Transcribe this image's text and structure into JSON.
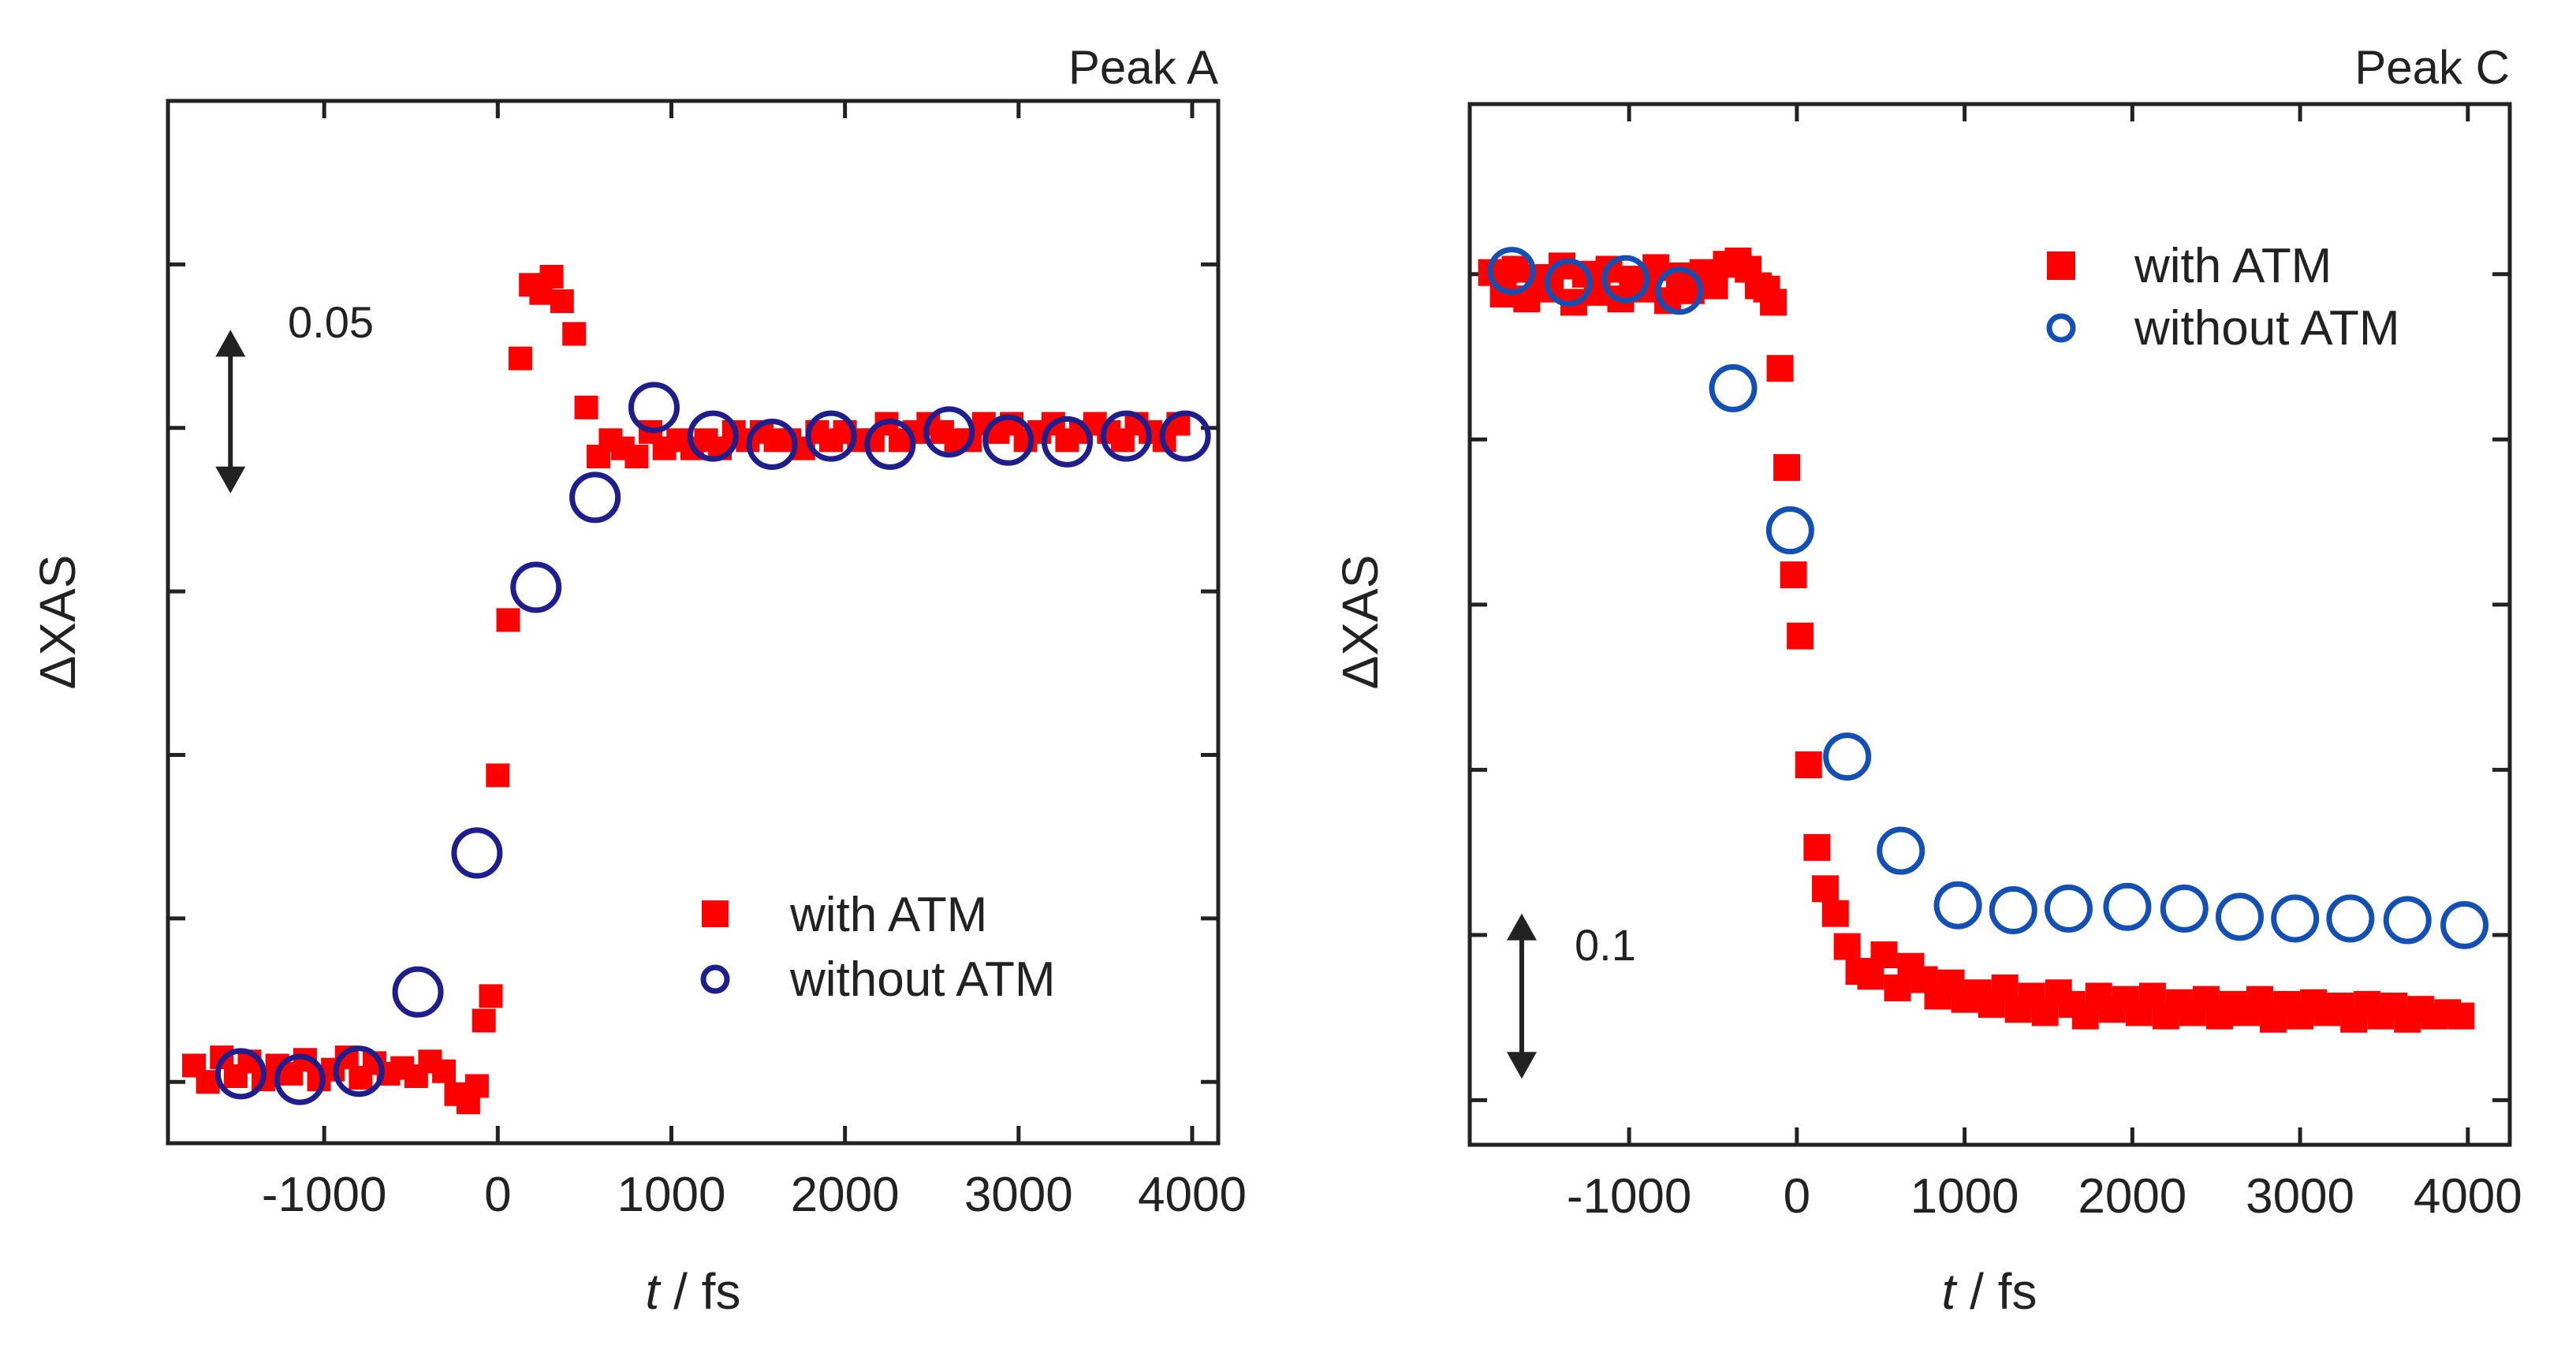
{
  "colors": {
    "with": "#ff0000",
    "without_left": "#1e1e8c",
    "without_right": "#1450b4",
    "axis": "#222222"
  },
  "chart_data": [
    {
      "type": "scatter",
      "title": "Peak A",
      "xlabel_italic": "t",
      "xlabel_rest": " / fs",
      "ylabel": "ΔXAS",
      "xlim": [
        -1900,
        4150
      ],
      "ylim": [
        0,
        0.1275
      ],
      "xticks": [
        -1000,
        0,
        1000,
        2000,
        3000,
        4000
      ],
      "xtick_labels": [
        "-1000",
        "0",
        "1000",
        "2000",
        "3000",
        "4000"
      ],
      "yticks": [
        0.0075,
        0.0275,
        0.0475,
        0.0675,
        0.0875,
        0.1075
      ],
      "scale_bar": {
        "label": "0.05",
        "y0": 0.0795,
        "y1": 0.0995,
        "x": -1540
      },
      "legend": {
        "position": "bottom-right",
        "entries": [
          "with ATM",
          "without ATM"
        ]
      },
      "series": [
        {
          "name": "with ATM",
          "marker": "square",
          "x": [
            -1750,
            -1670,
            -1590,
            -1510,
            -1430,
            -1350,
            -1270,
            -1190,
            -1110,
            -1030,
            -950,
            -870,
            -790,
            -710,
            -630,
            -550,
            -470,
            -390,
            -310,
            -240,
            -170,
            -120,
            -80,
            -40,
            0,
            60,
            130,
            190,
            250,
            310,
            370,
            440,
            510,
            580,
            650,
            720,
            800,
            880,
            960,
            1040,
            1120,
            1200,
            1280,
            1360,
            1440,
            1520,
            1600,
            1680,
            1760,
            1840,
            1920,
            2000,
            2080,
            2160,
            2240,
            2320,
            2400,
            2480,
            2560,
            2640,
            2720,
            2800,
            2880,
            2960,
            3040,
            3120,
            3200,
            3280,
            3360,
            3440,
            3520,
            3600,
            3680,
            3760,
            3840,
            3920
          ],
          "values": [
            0.0095,
            0.0075,
            0.0105,
            0.0082,
            0.01,
            0.0078,
            0.0095,
            0.0085,
            0.0102,
            0.0078,
            0.009,
            0.0105,
            0.008,
            0.0098,
            0.0085,
            0.0092,
            0.0082,
            0.01,
            0.0088,
            0.006,
            0.005,
            0.007,
            0.015,
            0.018,
            0.045,
            0.064,
            0.096,
            0.105,
            0.104,
            0.106,
            0.103,
            0.099,
            0.09,
            0.084,
            0.086,
            0.085,
            0.084,
            0.087,
            0.085,
            0.086,
            0.085,
            0.086,
            0.085,
            0.087,
            0.086,
            0.087,
            0.086,
            0.086,
            0.085,
            0.087,
            0.086,
            0.087,
            0.086,
            0.086,
            0.088,
            0.086,
            0.087,
            0.088,
            0.087,
            0.086,
            0.086,
            0.088,
            0.087,
            0.088,
            0.086,
            0.087,
            0.088,
            0.086,
            0.087,
            0.088,
            0.087,
            0.086,
            0.088,
            0.087,
            0.086,
            0.088
          ]
        },
        {
          "name": "without ATM",
          "marker": "circle",
          "x": [
            -1480,
            -1140,
            -800,
            -460,
            -120,
            220,
            560,
            900,
            1240,
            1580,
            1920,
            2260,
            2600,
            2940,
            3280,
            3620,
            3960
          ],
          "values": [
            0.0085,
            0.0078,
            0.0088,
            0.0185,
            0.0355,
            0.068,
            0.079,
            0.09,
            0.0865,
            0.0855,
            0.0865,
            0.0855,
            0.087,
            0.086,
            0.0858,
            0.0865,
            0.0865
          ]
        }
      ]
    },
    {
      "type": "scatter",
      "title": "Peak C",
      "xlabel_italic": "t",
      "xlabel_rest": " / fs",
      "ylabel": "ΔXAS",
      "xlim": [
        -1950,
        4250
      ],
      "ylim": [
        0,
        0.63
      ],
      "xticks": [
        -1000,
        0,
        1000,
        2000,
        3000,
        4000
      ],
      "xtick_labels": [
        "-1000",
        "0",
        "1000",
        "2000",
        "3000",
        "4000"
      ],
      "yticks": [
        0.027,
        0.127,
        0.227,
        0.327,
        0.427,
        0.527
      ],
      "scale_bar": {
        "label": "0.1",
        "y0": 0.04,
        "y1": 0.14,
        "x": -1640
      },
      "legend": {
        "position": "top-right",
        "entries": [
          "with ATM",
          "without ATM"
        ]
      },
      "series": [
        {
          "name": "with ATM",
          "marker": "square",
          "x": [
            -1820,
            -1750,
            -1680,
            -1610,
            -1540,
            -1470,
            -1400,
            -1330,
            -1260,
            -1190,
            -1120,
            -1050,
            -980,
            -910,
            -840,
            -770,
            -700,
            -630,
            -560,
            -490,
            -420,
            -350,
            -290,
            -230,
            -180,
            -140,
            -100,
            -60,
            -20,
            20,
            70,
            120,
            170,
            230,
            300,
            370,
            440,
            520,
            600,
            680,
            760,
            840,
            920,
            1000,
            1080,
            1160,
            1240,
            1320,
            1400,
            1480,
            1560,
            1640,
            1720,
            1800,
            1880,
            1960,
            2040,
            2120,
            2200,
            2280,
            2360,
            2440,
            2520,
            2600,
            2680,
            2760,
            2840,
            2920,
            3000,
            3080,
            3160,
            3240,
            3320,
            3400,
            3480,
            3560,
            3640,
            3720,
            3800,
            3880,
            3960
          ],
          "values": [
            0.528,
            0.515,
            0.53,
            0.512,
            0.525,
            0.518,
            0.532,
            0.51,
            0.527,
            0.516,
            0.53,
            0.512,
            0.524,
            0.518,
            0.531,
            0.511,
            0.526,
            0.517,
            0.528,
            0.52,
            0.533,
            0.535,
            0.53,
            0.52,
            0.518,
            0.51,
            0.47,
            0.41,
            0.345,
            0.308,
            0.23,
            0.18,
            0.155,
            0.14,
            0.12,
            0.105,
            0.102,
            0.115,
            0.095,
            0.108,
            0.1,
            0.09,
            0.098,
            0.088,
            0.092,
            0.085,
            0.095,
            0.082,
            0.09,
            0.08,
            0.092,
            0.085,
            0.078,
            0.09,
            0.082,
            0.088,
            0.08,
            0.09,
            0.078,
            0.086,
            0.08,
            0.088,
            0.078,
            0.085,
            0.08,
            0.088,
            0.076,
            0.085,
            0.078,
            0.086,
            0.08,
            0.084,
            0.076,
            0.085,
            0.078,
            0.084,
            0.076,
            0.082,
            0.078,
            0.08,
            0.078
          ]
        },
        {
          "name": "without ATM",
          "marker": "circle",
          "x": [
            -1700,
            -1360,
            -1020,
            -700,
            -380,
            -40,
            300,
            620,
            960,
            1290,
            1620,
            1970,
            2310,
            2640,
            2970,
            3300,
            3640,
            3980
          ],
          "values": [
            0.529,
            0.522,
            0.524,
            0.517,
            0.458,
            0.372,
            0.235,
            0.178,
            0.145,
            0.142,
            0.143,
            0.144,
            0.143,
            0.138,
            0.137,
            0.137,
            0.136,
            0.133
          ]
        }
      ]
    }
  ]
}
